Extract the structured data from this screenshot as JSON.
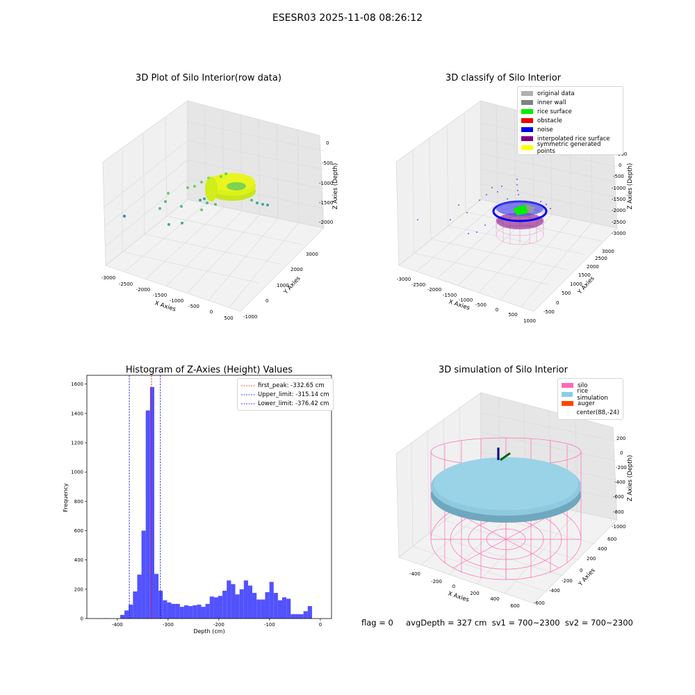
{
  "suptitle": "ESESR03 2025-11-08 08:26:12",
  "panels": {
    "raw": {
      "title": "3D Plot of Silo Interior(row data)",
      "xlabel": "X Axies",
      "ylabel": "Y Axies",
      "zlabel": "Z Axies (Depth)",
      "xticks": [
        "-3000",
        "-2500",
        "-2000",
        "-1500",
        "-1000",
        "-500",
        "0",
        "500"
      ],
      "yticks": [
        "-1000",
        "0",
        "1000",
        "2000",
        "3000"
      ],
      "zticks": [
        "0",
        "-500",
        "-1000",
        "-1500",
        "-2000"
      ]
    },
    "classify": {
      "title": "3D classify of Silo Interior",
      "xlabel": "X Axies",
      "ylabel": "Y Axies",
      "zlabel": "Z Axies (Depth)",
      "xticks": [
        "-3000",
        "-2500",
        "-2000",
        "-1500",
        "-1000",
        "-500",
        "0",
        "500",
        "1000"
      ],
      "yticks": [
        "-500",
        "0",
        "500",
        "1000",
        "1500",
        "2000",
        "2500",
        "3000"
      ],
      "zticks": [
        "500",
        "0",
        "-500",
        "-1000",
        "-1500",
        "-2000",
        "-2500",
        "-3000"
      ],
      "legend": [
        {
          "label": "original data",
          "color": "#b0b0b0"
        },
        {
          "label": "inner wall",
          "color": "#808080"
        },
        {
          "label": "rice surface",
          "color": "#00ee00"
        },
        {
          "label": "obstacle",
          "color": "#ee0000"
        },
        {
          "label": "noise",
          "color": "#0000ee"
        },
        {
          "label": "interpolated rice surface",
          "color": "#800080"
        },
        {
          "label": "symmetric generated points",
          "color": "#ffff00"
        }
      ]
    },
    "simulation": {
      "title": "3D simulation of Silo Interior",
      "xlabel": "X Axies",
      "ylabel": "Y Axies",
      "zlabel": "Z Axies (Depth)",
      "xticks": [
        "-400",
        "-200",
        "0",
        "200",
        "400",
        "600"
      ],
      "yticks": [
        "-600",
        "-400",
        "-200",
        "0",
        "200",
        "400",
        "600"
      ],
      "zticks": [
        "200",
        "0",
        "-200",
        "-400",
        "-600",
        "-800",
        "-1000"
      ],
      "legend": [
        {
          "label": "silo",
          "color": "#ff69b4"
        },
        {
          "label": "rice simulation",
          "color": "#87ceeb"
        },
        {
          "label": "auger",
          "color": "#ff4500"
        },
        {
          "label": "center(88,-24)",
          "color": "#ffffff"
        }
      ]
    }
  },
  "chart_data": [
    {
      "type": "bar",
      "title": "Histogram of Z-Axies (Height) Values",
      "xlabel": "Depth (cm)",
      "ylabel": "Frequency",
      "xlim": [
        -460,
        22
      ],
      "ylim": [
        0,
        1660
      ],
      "xticks": [
        -400,
        -300,
        -200,
        -100,
        0
      ],
      "yticks": [
        0,
        200,
        400,
        600,
        800,
        1000,
        1200,
        1400,
        1600
      ],
      "bin_width": 8.4,
      "bins": [
        {
          "x": -428,
          "count": 2
        },
        {
          "x": -419.6,
          "count": 0
        },
        {
          "x": -411.2,
          "count": 0
        },
        {
          "x": -402.8,
          "count": 0
        },
        {
          "x": -394.4,
          "count": 25
        },
        {
          "x": -386,
          "count": 55
        },
        {
          "x": -377.6,
          "count": 95
        },
        {
          "x": -369.2,
          "count": 185
        },
        {
          "x": -360.8,
          "count": 300
        },
        {
          "x": -352.4,
          "count": 600
        },
        {
          "x": -344,
          "count": 1420
        },
        {
          "x": -335.6,
          "count": 1580
        },
        {
          "x": -327.2,
          "count": 305
        },
        {
          "x": -318.8,
          "count": 190
        },
        {
          "x": -310.4,
          "count": 125
        },
        {
          "x": -302,
          "count": 110
        },
        {
          "x": -293.6,
          "count": 100
        },
        {
          "x": -285.2,
          "count": 100
        },
        {
          "x": -276.8,
          "count": 80
        },
        {
          "x": -268.4,
          "count": 90
        },
        {
          "x": -260,
          "count": 85
        },
        {
          "x": -251.6,
          "count": 90
        },
        {
          "x": -243.2,
          "count": 95
        },
        {
          "x": -234.8,
          "count": 80
        },
        {
          "x": -226.4,
          "count": 100
        },
        {
          "x": -218,
          "count": 150
        },
        {
          "x": -209.6,
          "count": 145
        },
        {
          "x": -201.2,
          "count": 155
        },
        {
          "x": -192.8,
          "count": 190
        },
        {
          "x": -184.4,
          "count": 260
        },
        {
          "x": -176,
          "count": 235
        },
        {
          "x": -167.6,
          "count": 165
        },
        {
          "x": -159.2,
          "count": 200
        },
        {
          "x": -150.8,
          "count": 260
        },
        {
          "x": -142.4,
          "count": 225
        },
        {
          "x": -134,
          "count": 175
        },
        {
          "x": -125.6,
          "count": 130
        },
        {
          "x": -117.2,
          "count": 130
        },
        {
          "x": -108.8,
          "count": 180
        },
        {
          "x": -100.4,
          "count": 250
        },
        {
          "x": -92,
          "count": 175
        },
        {
          "x": -83.6,
          "count": 125
        },
        {
          "x": -75.2,
          "count": 145
        },
        {
          "x": -66.8,
          "count": 135
        },
        {
          "x": -58.4,
          "count": 30
        },
        {
          "x": -50,
          "count": 30
        },
        {
          "x": -41.6,
          "count": 30
        },
        {
          "x": -33.2,
          "count": 50
        },
        {
          "x": -24.8,
          "count": 85
        }
      ],
      "bar_color": "#5252ff",
      "vlines": [
        {
          "label": "first_peak: -332.65 cm",
          "x": -332.65,
          "color": "#ff0000"
        },
        {
          "label": "Upper_limit: -315.14 cm",
          "x": -315.14,
          "color": "#0000ff"
        },
        {
          "label": "Lower_limit: -376.42 cm",
          "x": -376.42,
          "color": "#0000ff"
        }
      ],
      "legend_position": "top-right",
      "grid": false
    }
  ],
  "footer": "flag = 0     avgDepth = 327 cm  sv1 = 700~2300  sv2 = 700~2300"
}
